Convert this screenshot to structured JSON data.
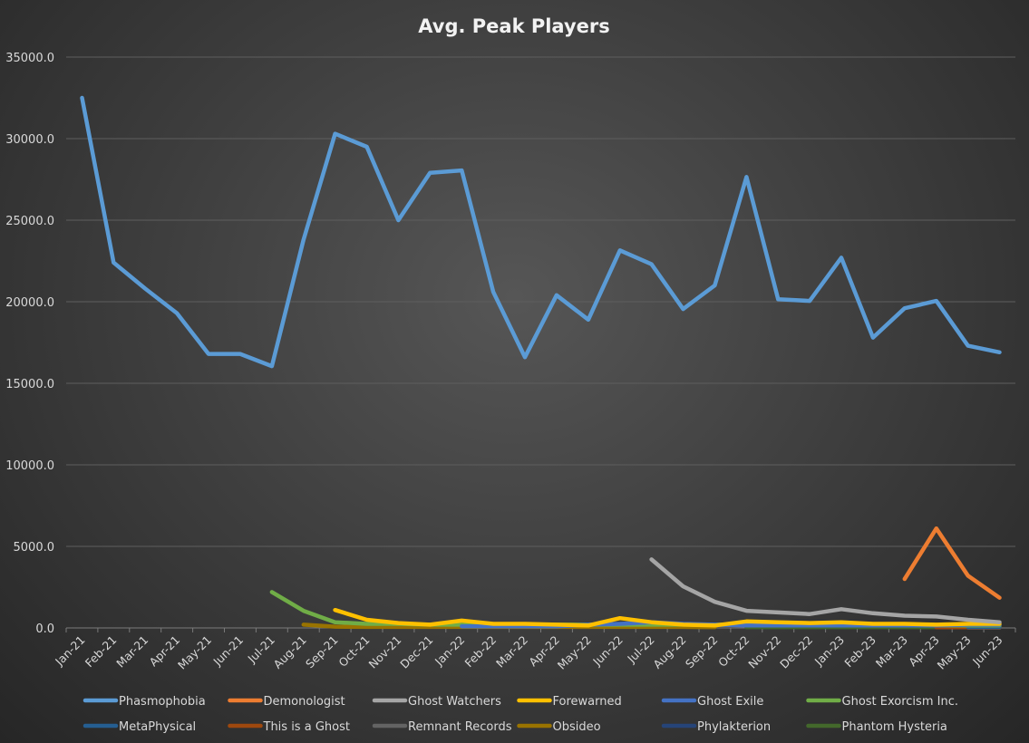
{
  "chart_data": {
    "type": "line",
    "title": "Avg. Peak Players",
    "xlabel": "",
    "ylabel": "",
    "ylim": [
      0,
      35000
    ],
    "yticks": [
      "0.0",
      "5000.0",
      "10000.0",
      "15000.0",
      "20000.0",
      "25000.0",
      "30000.0",
      "35000.0"
    ],
    "grid": true,
    "legend": "bottom",
    "categories": [
      "Jan-21",
      "Feb-21",
      "Mar-21",
      "Apr-21",
      "May-21",
      "Jun-21",
      "Jul-21",
      "Aug-21",
      "Sep-21",
      "Oct-21",
      "Nov-21",
      "Dec-21",
      "Jan-22",
      "Feb-22",
      "Mar-22",
      "Apr-22",
      "May-22",
      "Jun-22",
      "Jul-22",
      "Aug-22",
      "Sep-22",
      "Oct-22",
      "Nov-22",
      "Dec-22",
      "Jan-23",
      "Feb-23",
      "Mar-23",
      "Apr-23",
      "May-23",
      "Jun-23"
    ],
    "series": [
      {
        "name": "Phasmophobia",
        "color": "#5b9bd5",
        "values": [
          32500,
          22400,
          20800,
          19300,
          16800,
          16800,
          16050,
          23800,
          30300,
          29500,
          25000,
          27900,
          28050,
          20600,
          16600,
          20400,
          18900,
          23150,
          22300,
          19550,
          21000,
          27650,
          20150,
          20050,
          22700,
          17800,
          19600,
          20050,
          17300,
          16900
        ]
      },
      {
        "name": "Demonologist",
        "color": "#ed7d31",
        "values": [
          null,
          null,
          null,
          null,
          null,
          null,
          null,
          null,
          null,
          null,
          null,
          null,
          null,
          null,
          null,
          null,
          null,
          null,
          null,
          null,
          null,
          null,
          null,
          null,
          null,
          null,
          3000,
          6100,
          3200,
          1850
        ]
      },
      {
        "name": "Ghost Watchers",
        "color": "#a5a5a5",
        "values": [
          null,
          null,
          null,
          null,
          null,
          null,
          null,
          null,
          null,
          null,
          null,
          null,
          null,
          null,
          null,
          null,
          null,
          null,
          4200,
          2550,
          1600,
          1050,
          950,
          850,
          1150,
          900,
          750,
          700,
          500,
          350
        ]
      },
      {
        "name": "Forewarned",
        "color": "#ffc000",
        "values": [
          null,
          null,
          null,
          null,
          null,
          null,
          null,
          null,
          1100,
          500,
          300,
          200,
          450,
          250,
          250,
          200,
          150,
          600,
          350,
          200,
          150,
          400,
          350,
          300,
          350,
          250,
          250,
          200,
          250,
          250
        ]
      },
      {
        "name": "Ghost Exile",
        "color": "#4472c4",
        "values": [
          null,
          null,
          null,
          null,
          null,
          null,
          null,
          null,
          null,
          null,
          null,
          null,
          100,
          100,
          100,
          100,
          200,
          250,
          350,
          250,
          200,
          150,
          150,
          150,
          150,
          150,
          150,
          150,
          200,
          200
        ]
      },
      {
        "name": "Ghost Exorcism Inc.",
        "color": "#70ad47",
        "values": [
          null,
          null,
          null,
          null,
          null,
          null,
          2200,
          1050,
          350,
          250,
          250,
          200,
          200,
          200,
          200,
          200,
          200,
          200,
          200,
          200,
          200,
          200,
          200,
          200,
          200,
          200,
          150,
          150,
          150,
          150
        ]
      },
      {
        "name": "MetaPhysical",
        "color": "#255e91",
        "values": [
          null,
          null,
          null,
          null,
          null,
          null,
          null,
          null,
          null,
          null,
          null,
          null,
          null,
          null,
          null,
          null,
          null,
          null,
          null,
          null,
          null,
          null,
          null,
          null,
          null,
          null,
          null,
          null,
          60,
          60
        ]
      },
      {
        "name": "This is a Ghost",
        "color": "#9e480e",
        "values": [
          null,
          null,
          null,
          null,
          null,
          null,
          null,
          null,
          null,
          null,
          null,
          null,
          null,
          null,
          null,
          null,
          null,
          null,
          null,
          null,
          null,
          null,
          null,
          null,
          null,
          null,
          null,
          40,
          40,
          40
        ]
      },
      {
        "name": "Remnant Records",
        "color": "#636363",
        "values": [
          null,
          null,
          null,
          null,
          null,
          null,
          null,
          null,
          null,
          null,
          null,
          null,
          null,
          null,
          null,
          null,
          null,
          null,
          null,
          null,
          null,
          null,
          null,
          null,
          null,
          null,
          null,
          null,
          30,
          30
        ]
      },
      {
        "name": "Obsideo",
        "color": "#997300",
        "values": [
          null,
          null,
          null,
          null,
          null,
          null,
          null,
          200,
          80,
          60,
          60,
          60,
          60,
          60,
          60,
          60,
          60,
          60,
          60,
          60,
          50,
          null,
          null,
          null,
          null,
          null,
          null,
          null,
          null,
          null
        ]
      },
      {
        "name": "Phylakterion",
        "color": "#264478",
        "values": [
          null,
          null,
          null,
          null,
          null,
          null,
          null,
          null,
          null,
          null,
          null,
          null,
          null,
          null,
          null,
          null,
          null,
          null,
          null,
          null,
          null,
          null,
          null,
          null,
          null,
          null,
          null,
          null,
          20,
          20
        ]
      },
      {
        "name": "Phantom Hysteria",
        "color": "#43682b",
        "values": [
          null,
          null,
          null,
          null,
          null,
          null,
          null,
          null,
          null,
          null,
          null,
          null,
          null,
          null,
          null,
          null,
          null,
          null,
          null,
          null,
          null,
          50,
          50,
          50,
          50,
          50,
          50,
          50,
          50,
          50
        ]
      }
    ]
  }
}
